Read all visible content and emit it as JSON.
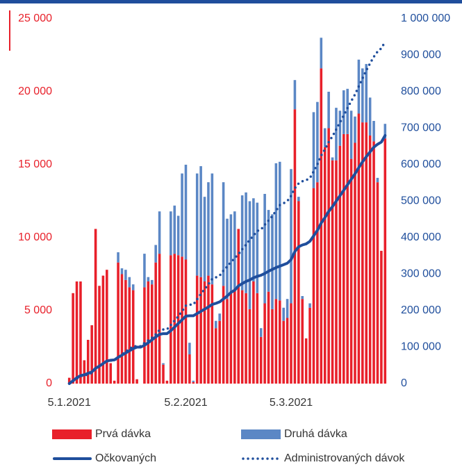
{
  "chart_data": {
    "type": "bar",
    "categories": [
      "5.1.2021",
      null,
      null,
      null,
      null,
      null,
      null,
      null,
      null,
      null,
      null,
      null,
      null,
      null,
      null,
      null,
      null,
      null,
      null,
      null,
      null,
      null,
      null,
      null,
      null,
      null,
      null,
      null,
      null,
      null,
      null,
      "5.2.2021",
      null,
      null,
      null,
      null,
      null,
      null,
      null,
      null,
      null,
      null,
      null,
      null,
      null,
      null,
      null,
      null,
      null,
      null,
      null,
      null,
      null,
      null,
      null,
      null,
      null,
      null,
      null,
      "5.3.2021",
      null,
      null,
      null,
      null,
      null,
      null,
      null,
      null,
      null,
      null,
      null,
      null,
      null,
      null,
      null,
      null,
      null,
      null,
      null,
      null,
      null,
      null,
      null,
      null,
      null
    ],
    "series": [
      {
        "name": "Prvá dávka",
        "type": "bar",
        "color": "#e8202a",
        "values": [
          400,
          6200,
          7000,
          7000,
          1600,
          3000,
          4000,
          10600,
          6700,
          7400,
          7800,
          1400,
          200,
          8300,
          7500,
          7100,
          6600,
          6400,
          300,
          0,
          6600,
          7000,
          6800,
          8300,
          8900,
          1300,
          200,
          8800,
          8900,
          8800,
          8700,
          8500,
          2000,
          100,
          7400,
          7300,
          7000,
          7400,
          6800,
          3800,
          4300,
          6700,
          5800,
          6200,
          6500,
          10600,
          6400,
          6200,
          5100,
          7000,
          6200,
          3200,
          5500,
          6300,
          5100,
          5800,
          5700,
          4300,
          4500,
          5500,
          18800,
          12500,
          5800,
          3100,
          5200,
          13400,
          13800,
          21600,
          16200,
          17500,
          15300,
          15300,
          16300,
          17100,
          17100,
          15400,
          16500,
          18500,
          17900,
          17900,
          17000,
          16600,
          13800,
          9100,
          16800
        ]
      },
      {
        "name": "Druhá dávka",
        "type": "bar",
        "color": "#5b87c5",
        "values": [
          0,
          0,
          0,
          0,
          0,
          0,
          0,
          0,
          0,
          0,
          0,
          0,
          0,
          700,
          400,
          700,
          700,
          400,
          0,
          0,
          2300,
          300,
          300,
          1200,
          2900,
          100,
          0,
          3000,
          3300,
          2700,
          5700,
          6500,
          800,
          100,
          7000,
          7600,
          5800,
          6400,
          7600,
          500,
          500,
          7100,
          5500,
          5400,
          5300,
          0,
          6500,
          6900,
          7400,
          5700,
          6200,
          600,
          7500,
          5600,
          6500,
          9300,
          9500,
          900,
          1300,
          9200,
          2000,
          300,
          200,
          0,
          300,
          5200,
          5500,
          2100,
          1300,
          2500,
          200,
          3600,
          2400,
          3000,
          3100,
          3300,
          1800,
          3700,
          3700,
          4000,
          2600,
          1400,
          300,
          0,
          1000
        ]
      },
      {
        "name": "Očkovaných",
        "type": "line",
        "axis": "y2",
        "line_style": "solid",
        "color": "#1f4e9c",
        "values": [
          0,
          8000,
          16000,
          22000,
          24000,
          28000,
          32000,
          42000,
          48000,
          55000,
          62000,
          64000,
          65000,
          72000,
          78000,
          84000,
          90000,
          96000,
          100000,
          100000,
          105000,
          112000,
          120000,
          128000,
          135000,
          137000,
          137000,
          145000,
          155000,
          165000,
          175000,
          185000,
          186000,
          186000,
          192000,
          198000,
          204000,
          210000,
          217000,
          220000,
          224000,
          232000,
          240000,
          250000,
          256000,
          268000,
          274000,
          280000,
          284000,
          290000,
          294000,
          297000,
          302000,
          308000,
          313000,
          318000,
          322000,
          326000,
          330000,
          340000,
          362000,
          375000,
          380000,
          383000,
          390000,
          405000,
          420000,
          440000,
          455000,
          472000,
          485000,
          500000,
          515000,
          530000,
          545000,
          560000,
          575000,
          592000,
          608000,
          622000,
          635000,
          648000,
          656000,
          662000,
          680000
        ]
      },
      {
        "name": "Administrovaných dávok",
        "type": "line",
        "axis": "y2",
        "line_style": "dotted",
        "color": "#1f4e9c",
        "values": [
          400,
          6600,
          13600,
          20600,
          22200,
          25200,
          29200,
          39800,
          46500,
          53900,
          61700,
          63100,
          63300,
          72300,
          80200,
          88000,
          95300,
          102100,
          102400,
          102400,
          111300,
          118600,
          125700,
          135200,
          147000,
          148400,
          148600,
          160400,
          172600,
          184100,
          198500,
          213500,
          216300,
          216500,
          230900,
          245800,
          258600,
          272400,
          286800,
          291100,
          295900,
          309700,
          321000,
          332600,
          344400,
          355000,
          367900,
          381000,
          393500,
          406200,
          418600,
          422400,
          435400,
          447300,
          458900,
          474000,
          489200,
          494400,
          500200,
          514900,
          535700,
          548500,
          554500,
          557600,
          563100,
          581700,
          601000,
          624700,
          642200,
          662200,
          677700,
          696600,
          715300,
          735400,
          755600,
          774300,
          792600,
          814800,
          836400,
          858300,
          877900,
          895900,
          910000,
          919100,
          936900
        ]
      }
    ],
    "ylim": [
      0,
      25000
    ],
    "yticks": [
      0,
      {
        "value": 5000,
        "label": "5 000"
      },
      {
        "value": 10000,
        "label": "10 000"
      },
      {
        "value": 15000,
        "label": "15 000"
      },
      {
        "value": 20000,
        "label": "20 000"
      },
      {
        "value": 25000,
        "label": "25 000"
      }
    ],
    "y2lim": [
      0,
      1000000
    ],
    "y2ticks": [
      0,
      {
        "value": 100000,
        "label": "100 000"
      },
      {
        "value": 200000,
        "label": "200 000"
      },
      {
        "value": 300000,
        "label": "300 000"
      },
      {
        "value": 400000,
        "label": "400 000"
      },
      {
        "value": 500000,
        "label": "500 000"
      },
      {
        "value": 600000,
        "label": "600 000"
      },
      {
        "value": 700000,
        "label": "700 000"
      },
      {
        "value": 800000,
        "label": "800 000"
      },
      {
        "value": 900000,
        "label": "900 000"
      },
      {
        "value": 1000000,
        "label": "1 000 000"
      }
    ],
    "ytick_color": "#e8202a",
    "y2tick_color": "#1f4e9c",
    "grid": false
  }
}
